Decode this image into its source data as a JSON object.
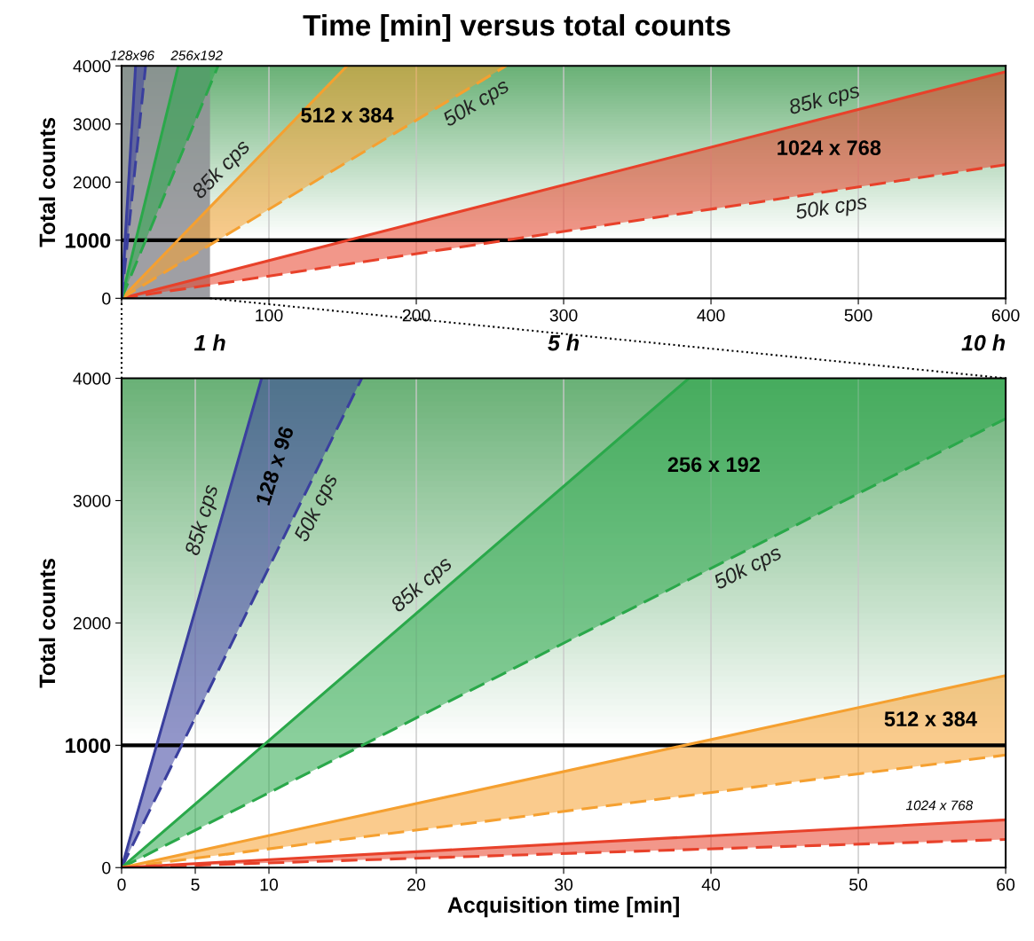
{
  "chart_data": [
    {
      "type": "line",
      "title": "Time [min] versus total counts",
      "ylabel": "Total counts",
      "xlim": [
        0,
        600
      ],
      "xticks": [
        {
          "value": 0,
          "label": null
        },
        100,
        200,
        300,
        400,
        500,
        600
      ],
      "ylim": [
        0,
        4000
      ],
      "yticks": [
        0,
        1000,
        2000,
        3000,
        4000
      ],
      "grid": "x",
      "ref_lines": [
        {
          "axis": "y",
          "value": 1000,
          "color": "#000000"
        }
      ],
      "bands": [
        {
          "axis": "y",
          "from": 1000,
          "to": 4000,
          "color": "#4fa35e"
        },
        {
          "axis": "x",
          "from": 0,
          "to": 60,
          "color": "#8e8e94"
        }
      ],
      "annotations": [
        "128x96",
        "256x192",
        "512 x 384",
        "1024 x 768",
        "1 h",
        "5 h",
        "10 h"
      ],
      "series": [
        {
          "color": "#e8412a",
          "x": [
            0,
            600
          ],
          "values": [
            0,
            3900
          ],
          "lower": [
            0,
            2300
          ],
          "upper": [
            0,
            3900
          ],
          "name": "85k cps"
        },
        {
          "color": "#e8412a",
          "x": [
            0,
            600
          ],
          "values": [
            0,
            2300
          ],
          "line_style": "dashed",
          "name": "50k cps"
        },
        {
          "color": "#f5a030",
          "x": [
            0,
            153,
            261
          ],
          "values": [
            0,
            4000,
            null
          ],
          "lower": [
            0,
            2340,
            4000
          ],
          "upper": [
            0,
            4000,
            4000
          ],
          "name": "85k cps"
        },
        {
          "color": "#f5a030",
          "x": [
            0,
            261
          ],
          "values": [
            0,
            4000
          ],
          "line_style": "dashed",
          "name": "50k cps"
        },
        {
          "color": "#2aa84a",
          "x": [
            0,
            38.5,
            65.5
          ],
          "values": [
            0,
            4000,
            null
          ],
          "lower": [
            0,
            2350,
            4000
          ],
          "upper": [
            0,
            4000,
            4000
          ]
        },
        {
          "color": "#2aa84a",
          "x": [
            0,
            65.5
          ],
          "values": [
            0,
            4000
          ],
          "line_style": "dashed"
        },
        {
          "color": "#3a3f9e",
          "x": [
            0,
            9.5,
            16.3
          ],
          "values": [
            0,
            4000,
            null
          ],
          "lower": [
            0,
            2330,
            4000
          ],
          "upper": [
            0,
            4000,
            4000
          ]
        },
        {
          "color": "#3a3f9e",
          "x": [
            0,
            16.3
          ],
          "values": [
            0,
            4000
          ],
          "line_style": "dashed"
        }
      ]
    },
    {
      "type": "line",
      "xlabel": "Acquisition time [min]",
      "ylabel": "Total counts",
      "xlim": [
        0,
        60
      ],
      "xticks": [
        0,
        5,
        10,
        20,
        30,
        40,
        50,
        60
      ],
      "ylim": [
        0,
        4000
      ],
      "yticks": [
        0,
        1000,
        2000,
        3000,
        4000
      ],
      "grid": "x",
      "ref_lines": [
        {
          "axis": "y",
          "value": 1000,
          "color": "#000000"
        }
      ],
      "bands": [
        {
          "axis": "y",
          "from": 1000,
          "to": 4000,
          "color": "#4fa35e"
        }
      ],
      "annotations": [
        "128 x 96",
        "256 x 192",
        "512 x 384",
        "1024 x 768"
      ],
      "series": [
        {
          "color": "#3a3f9e",
          "x": [
            0,
            9.5,
            16.3
          ],
          "values": [
            0,
            4000,
            null
          ],
          "lower": [
            0,
            2330,
            4000
          ],
          "upper": [
            0,
            4000,
            4000
          ],
          "name": "85k cps"
        },
        {
          "color": "#3a3f9e",
          "x": [
            0,
            16.3
          ],
          "values": [
            0,
            4000
          ],
          "line_style": "dashed",
          "name": "50k cps"
        },
        {
          "color": "#2aa84a",
          "x": [
            0,
            38.5,
            60
          ],
          "values": [
            0,
            4000,
            null
          ],
          "lower": [
            0,
            2350,
            3670
          ],
          "upper": [
            0,
            4000,
            4000
          ],
          "name": "85k cps"
        },
        {
          "color": "#2aa84a",
          "x": [
            0,
            60
          ],
          "values": [
            0,
            3670
          ],
          "line_style": "dashed",
          "name": "50k cps"
        },
        {
          "color": "#f5a030",
          "x": [
            0,
            60
          ],
          "values": [
            0,
            1570
          ],
          "lower": [
            0,
            920
          ],
          "upper": [
            0,
            1570
          ]
        },
        {
          "color": "#f5a030",
          "x": [
            0,
            60
          ],
          "values": [
            0,
            920
          ],
          "line_style": "dashed"
        },
        {
          "color": "#e8412a",
          "x": [
            0,
            60
          ],
          "values": [
            0,
            390
          ],
          "lower": [
            0,
            230
          ],
          "upper": [
            0,
            390
          ]
        },
        {
          "color": "#e8412a",
          "x": [
            0,
            60
          ],
          "values": [
            0,
            230
          ],
          "line_style": "dashed"
        }
      ]
    }
  ]
}
